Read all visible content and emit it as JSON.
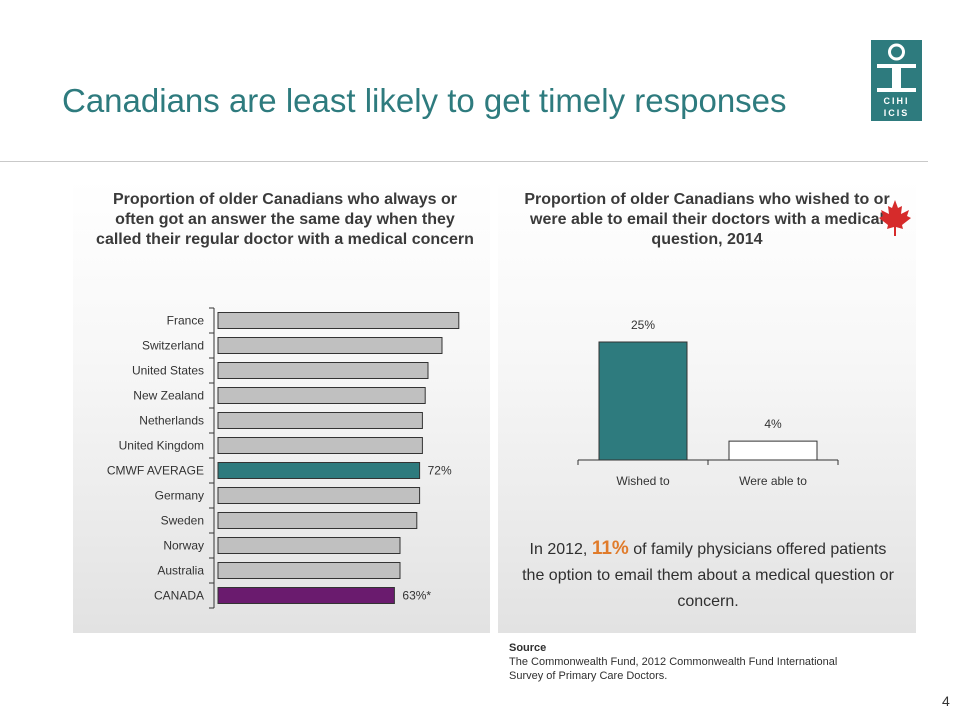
{
  "slide": {
    "title": "Canadians are least likely to get timely responses",
    "page_number": "4",
    "logo_text": [
      "CIHI",
      "ICIS"
    ]
  },
  "left_panel": {
    "title": "Proportion of older Canadians who always or often got an answer the same day when they called their regular doctor with a medical concern"
  },
  "right_panel": {
    "title": "Proportion of older Canadians who wished to or were able to email their doctors with a medical question, 2014",
    "note_prefix": "In 2012, ",
    "note_highlight": "11%",
    "note_suffix": " of family physicians offered patients the option to email them about a medical question or concern."
  },
  "source": {
    "heading": "Source",
    "text": "The Commonwealth Fund, 2012 Commonwealth Fund International Survey of Primary Care Doctors."
  },
  "colors": {
    "title": "#2e7b7e",
    "gray_bar": "#c0c0c0",
    "average_bar": "#2e7b7e",
    "canada_bar": "#6a1b6e",
    "highlight": "#e07b2b",
    "leaf": "#d62b2b"
  },
  "chart_data": [
    {
      "type": "bar",
      "orientation": "horizontal",
      "categories": [
        "France",
        "Switzerland",
        "United States",
        "New Zealand",
        "Netherlands",
        "United Kingdom",
        "CMWF AVERAGE",
        "Germany",
        "Sweden",
        "Norway",
        "Australia",
        "CANADA"
      ],
      "values": [
        86,
        80,
        75,
        74,
        73,
        73,
        72,
        72,
        71,
        65,
        65,
        63
      ],
      "data_labels": [
        "",
        "",
        "",
        "",
        "",
        "",
        "72%",
        "",
        "",
        "",
        "",
        "63%*"
      ],
      "bar_colors": [
        "#c0c0c0",
        "#c0c0c0",
        "#c0c0c0",
        "#c0c0c0",
        "#c0c0c0",
        "#c0c0c0",
        "#2e7b7e",
        "#c0c0c0",
        "#c0c0c0",
        "#c0c0c0",
        "#c0c0c0",
        "#6a1b6e"
      ],
      "xlim": [
        0,
        100
      ],
      "grid": false,
      "legend": "none"
    },
    {
      "type": "bar",
      "orientation": "vertical",
      "categories": [
        "Wished to",
        "Were able to"
      ],
      "values": [
        25,
        4
      ],
      "data_labels": [
        "25%",
        "4%"
      ],
      "bar_colors": [
        "#2e7b7e",
        "#ffffff"
      ],
      "ylim": [
        0,
        30
      ],
      "grid": false,
      "legend": "none"
    }
  ]
}
